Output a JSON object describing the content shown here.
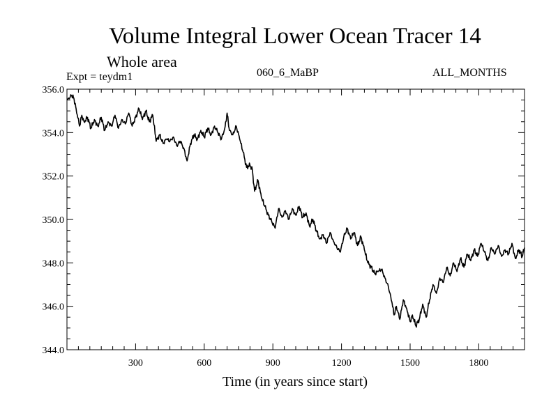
{
  "chart_data": {
    "type": "line",
    "title": "Volume Integral Lower Ocean Tracer 14",
    "subtitle": "Whole area",
    "experiment": "Expt = teydm1",
    "run_label": "060_6_MaBP",
    "season": "ALL_MONTHS",
    "xlabel": "Time (in years since start)",
    "ylabel": "",
    "xlim": [
      0,
      2000
    ],
    "ylim": [
      344.0,
      356.0
    ],
    "x_ticks": [
      300,
      600,
      900,
      1200,
      1500,
      1800
    ],
    "x_tick_labels": [
      "300",
      "600",
      "900",
      "1200",
      "1500",
      "1800"
    ],
    "y_ticks": [
      344.0,
      346.0,
      348.0,
      350.0,
      352.0,
      354.0,
      356.0
    ],
    "y_tick_labels": [
      "344.0",
      "346.0",
      "348.0",
      "350.0",
      "352.0",
      "354.0",
      "356.0"
    ],
    "grid": false,
    "line_color": "#000000",
    "series": [
      {
        "name": "Lower Ocean Tracer 14",
        "x": [
          0,
          20,
          30,
          40,
          55,
          65,
          75,
          90,
          105,
          120,
          135,
          150,
          165,
          180,
          195,
          210,
          225,
          240,
          255,
          270,
          285,
          300,
          315,
          330,
          345,
          360,
          375,
          390,
          405,
          420,
          435,
          450,
          465,
          480,
          495,
          510,
          525,
          540,
          555,
          570,
          585,
          600,
          615,
          630,
          645,
          660,
          675,
          690,
          700,
          710,
          725,
          740,
          755,
          770,
          785,
          800,
          810,
          820,
          835,
          850,
          865,
          880,
          895,
          910,
          925,
          940,
          955,
          970,
          985,
          1000,
          1015,
          1030,
          1045,
          1060,
          1075,
          1090,
          1105,
          1120,
          1135,
          1150,
          1165,
          1180,
          1195,
          1210,
          1225,
          1240,
          1255,
          1270,
          1285,
          1300,
          1315,
          1330,
          1345,
          1360,
          1375,
          1390,
          1405,
          1420,
          1430,
          1440,
          1455,
          1470,
          1485,
          1500,
          1510,
          1525,
          1540,
          1555,
          1570,
          1585,
          1600,
          1615,
          1630,
          1645,
          1660,
          1675,
          1690,
          1705,
          1720,
          1735,
          1750,
          1765,
          1780,
          1795,
          1810,
          1825,
          1840,
          1855,
          1870,
          1885,
          1900,
          1915,
          1930,
          1945,
          1960,
          1975,
          1990,
          2000
        ],
        "values": [
          355.5,
          355.7,
          355.6,
          355.1,
          354.3,
          354.8,
          354.5,
          354.7,
          354.2,
          354.6,
          354.3,
          354.7,
          354.1,
          354.5,
          354.3,
          354.8,
          354.2,
          354.6,
          354.4,
          354.9,
          354.3,
          354.7,
          355.1,
          354.6,
          355.0,
          354.5,
          354.8,
          353.6,
          353.9,
          353.5,
          353.7,
          353.6,
          353.8,
          353.4,
          353.6,
          353.3,
          352.7,
          353.5,
          353.9,
          353.7,
          354.1,
          353.8,
          354.2,
          353.9,
          354.3,
          354.0,
          353.7,
          354.2,
          354.9,
          354.1,
          353.9,
          354.3,
          353.7,
          353.1,
          352.4,
          352.5,
          352.3,
          351.3,
          351.8,
          351.0,
          350.6,
          350.2,
          349.9,
          349.6,
          350.5,
          350.1,
          350.4,
          350.0,
          350.5,
          350.2,
          350.6,
          350.1,
          350.3,
          349.7,
          350.0,
          349.5,
          349.1,
          349.3,
          348.9,
          349.4,
          349.0,
          348.7,
          348.5,
          349.2,
          349.6,
          349.1,
          349.4,
          348.8,
          349.2,
          348.6,
          348.0,
          347.8,
          347.5,
          347.6,
          347.7,
          347.3,
          346.9,
          346.2,
          345.6,
          346.0,
          345.4,
          346.3,
          345.9,
          345.3,
          345.6,
          345.1,
          345.4,
          346.1,
          345.5,
          346.3,
          347.0,
          346.6,
          347.3,
          347.1,
          347.8,
          347.4,
          348.0,
          347.6,
          348.2,
          347.8,
          348.4,
          348.1,
          348.6,
          348.3,
          348.9,
          348.5,
          348.1,
          348.7,
          348.4,
          348.8,
          348.3,
          348.6,
          348.4,
          348.9,
          348.2,
          348.6,
          348.3,
          348.7
        ]
      }
    ]
  }
}
